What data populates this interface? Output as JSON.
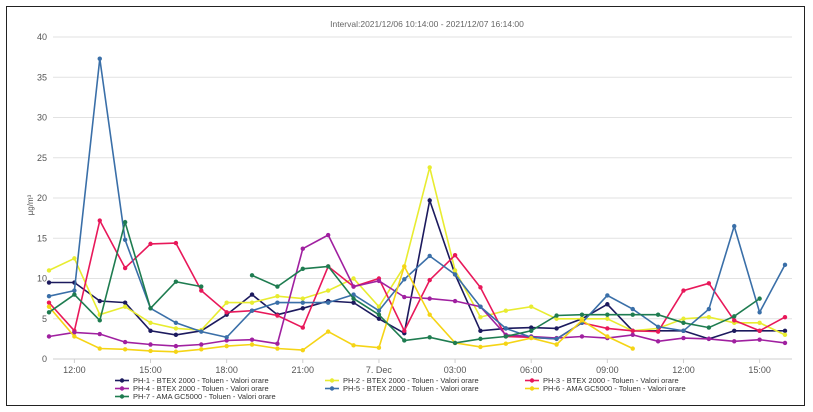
{
  "chart_data": {
    "type": "line",
    "title": "",
    "subtitle": "Interval:2021/12/06 10:14:00 - 2021/12/07 16:14:00",
    "ylabel": "µg/m³",
    "xlabel": "",
    "ylim": [
      0,
      40
    ],
    "yticks": [
      0,
      5,
      10,
      15,
      20,
      25,
      30,
      35,
      40
    ],
    "grid": true,
    "legend_position": "bottom",
    "x_start": "2021-12-06 11:00",
    "x_interval_hours": 1,
    "x_tick_labels": [
      {
        "at": "2021-12-06 12:00",
        "label": "12:00"
      },
      {
        "at": "2021-12-06 15:00",
        "label": "15:00"
      },
      {
        "at": "2021-12-06 18:00",
        "label": "18:00"
      },
      {
        "at": "2021-12-06 21:00",
        "label": "21:00"
      },
      {
        "at": "2021-12-07 00:00",
        "label": "7. Dec"
      },
      {
        "at": "2021-12-07 03:00",
        "label": "03:00"
      },
      {
        "at": "2021-12-07 06:00",
        "label": "06:00"
      },
      {
        "at": "2021-12-07 09:00",
        "label": "09:00"
      },
      {
        "at": "2021-12-07 12:00",
        "label": "12:00"
      },
      {
        "at": "2021-12-07 15:00",
        "label": "15:00"
      }
    ],
    "series": [
      {
        "name": "PH-1 - BTEX 2000 - Toluen - Valori orare",
        "color": "#1c1a5e",
        "values": [
          9.5,
          9.5,
          7.2,
          7.0,
          3.5,
          3.0,
          3.5,
          5.5,
          8.0,
          5.5,
          6.3,
          7.2,
          7.0,
          5.0,
          3.2,
          19.7,
          10.5,
          3.5,
          3.8,
          3.9,
          3.8,
          5.0,
          6.8,
          3.5,
          3.5,
          3.5,
          2.5,
          3.5,
          3.5,
          3.5
        ]
      },
      {
        "name": "PH-2 - BTEX 2000 - Toluen - Valori orare",
        "color": "#e8ec30",
        "values": [
          11.0,
          12.5,
          5.5,
          6.5,
          4.5,
          3.8,
          3.6,
          7.0,
          7.0,
          7.8,
          7.5,
          8.5,
          10.0,
          6.5,
          11.5,
          23.8,
          11.0,
          5.2,
          6.0,
          6.5,
          5.0,
          5.0,
          5.0,
          3.5,
          3.8,
          5.0,
          5.2,
          4.5,
          4.5,
          3.0
        ]
      },
      {
        "name": "PH-3 - BTEX 2000 - Toluen - Valori orare",
        "color": "#e8185a",
        "values": [
          7.0,
          3.5,
          17.2,
          11.3,
          14.3,
          14.4,
          8.5,
          5.8,
          6.0,
          5.4,
          3.9,
          11.5,
          9.0,
          10.0,
          3.5,
          9.8,
          12.9,
          8.9,
          2.8,
          2.7,
          2.5,
          4.5,
          3.8,
          3.5,
          3.4,
          8.5,
          9.4,
          4.8,
          3.5,
          5.2
        ]
      },
      {
        "name": "PH-4 - BTEX 2000 - Toluen - Valori orare",
        "color": "#a020a0",
        "values": [
          2.8,
          3.3,
          3.1,
          2.1,
          1.8,
          1.6,
          1.8,
          2.3,
          2.4,
          1.9,
          13.7,
          15.4,
          9.0,
          9.7,
          7.7,
          7.5,
          7.2,
          6.5,
          3.0,
          2.8,
          2.6,
          2.8,
          2.6,
          3.0,
          2.2,
          2.6,
          2.5,
          2.2,
          2.4,
          2.0
        ]
      },
      {
        "name": "PH-5 - BTEX 2000 - Toluen - Valori orare",
        "color": "#3a6fa8",
        "values": [
          7.8,
          8.5,
          37.3,
          14.8,
          6.3,
          4.5,
          3.4,
          2.7,
          6.0,
          7.0,
          7.0,
          7.0,
          8.0,
          6.0,
          9.9,
          12.8,
          10.5,
          6.5,
          3.8,
          2.7,
          2.5,
          4.5,
          7.9,
          6.2,
          4.0,
          3.5,
          6.2,
          16.5,
          5.8,
          11.7
        ]
      },
      {
        "name": "PH-6 - AMA GC5000 - Toluen - Valori orare",
        "color": "#f5d415",
        "values": [
          6.5,
          2.8,
          1.3,
          1.2,
          1.0,
          0.9,
          1.2,
          1.6,
          1.8,
          1.3,
          1.1,
          3.4,
          1.7,
          1.4,
          11.5,
          5.5,
          2.0,
          1.5,
          1.9,
          2.6,
          1.8,
          4.8,
          2.8,
          1.3,
          null,
          null,
          null,
          null,
          null,
          null
        ]
      },
      {
        "name": "PH-7 - AMA GC5000 - Toluen - Valori orare",
        "color": "#1e7c50",
        "values": [
          5.8,
          8.0,
          4.8,
          17.0,
          6.3,
          9.6,
          9.0,
          null,
          10.4,
          9.0,
          11.2,
          11.5,
          7.5,
          5.5,
          2.3,
          2.7,
          2.0,
          2.5,
          2.8,
          3.5,
          5.4,
          5.5,
          5.5,
          5.5,
          5.5,
          4.5,
          3.9,
          5.3,
          7.5,
          null
        ]
      }
    ]
  }
}
